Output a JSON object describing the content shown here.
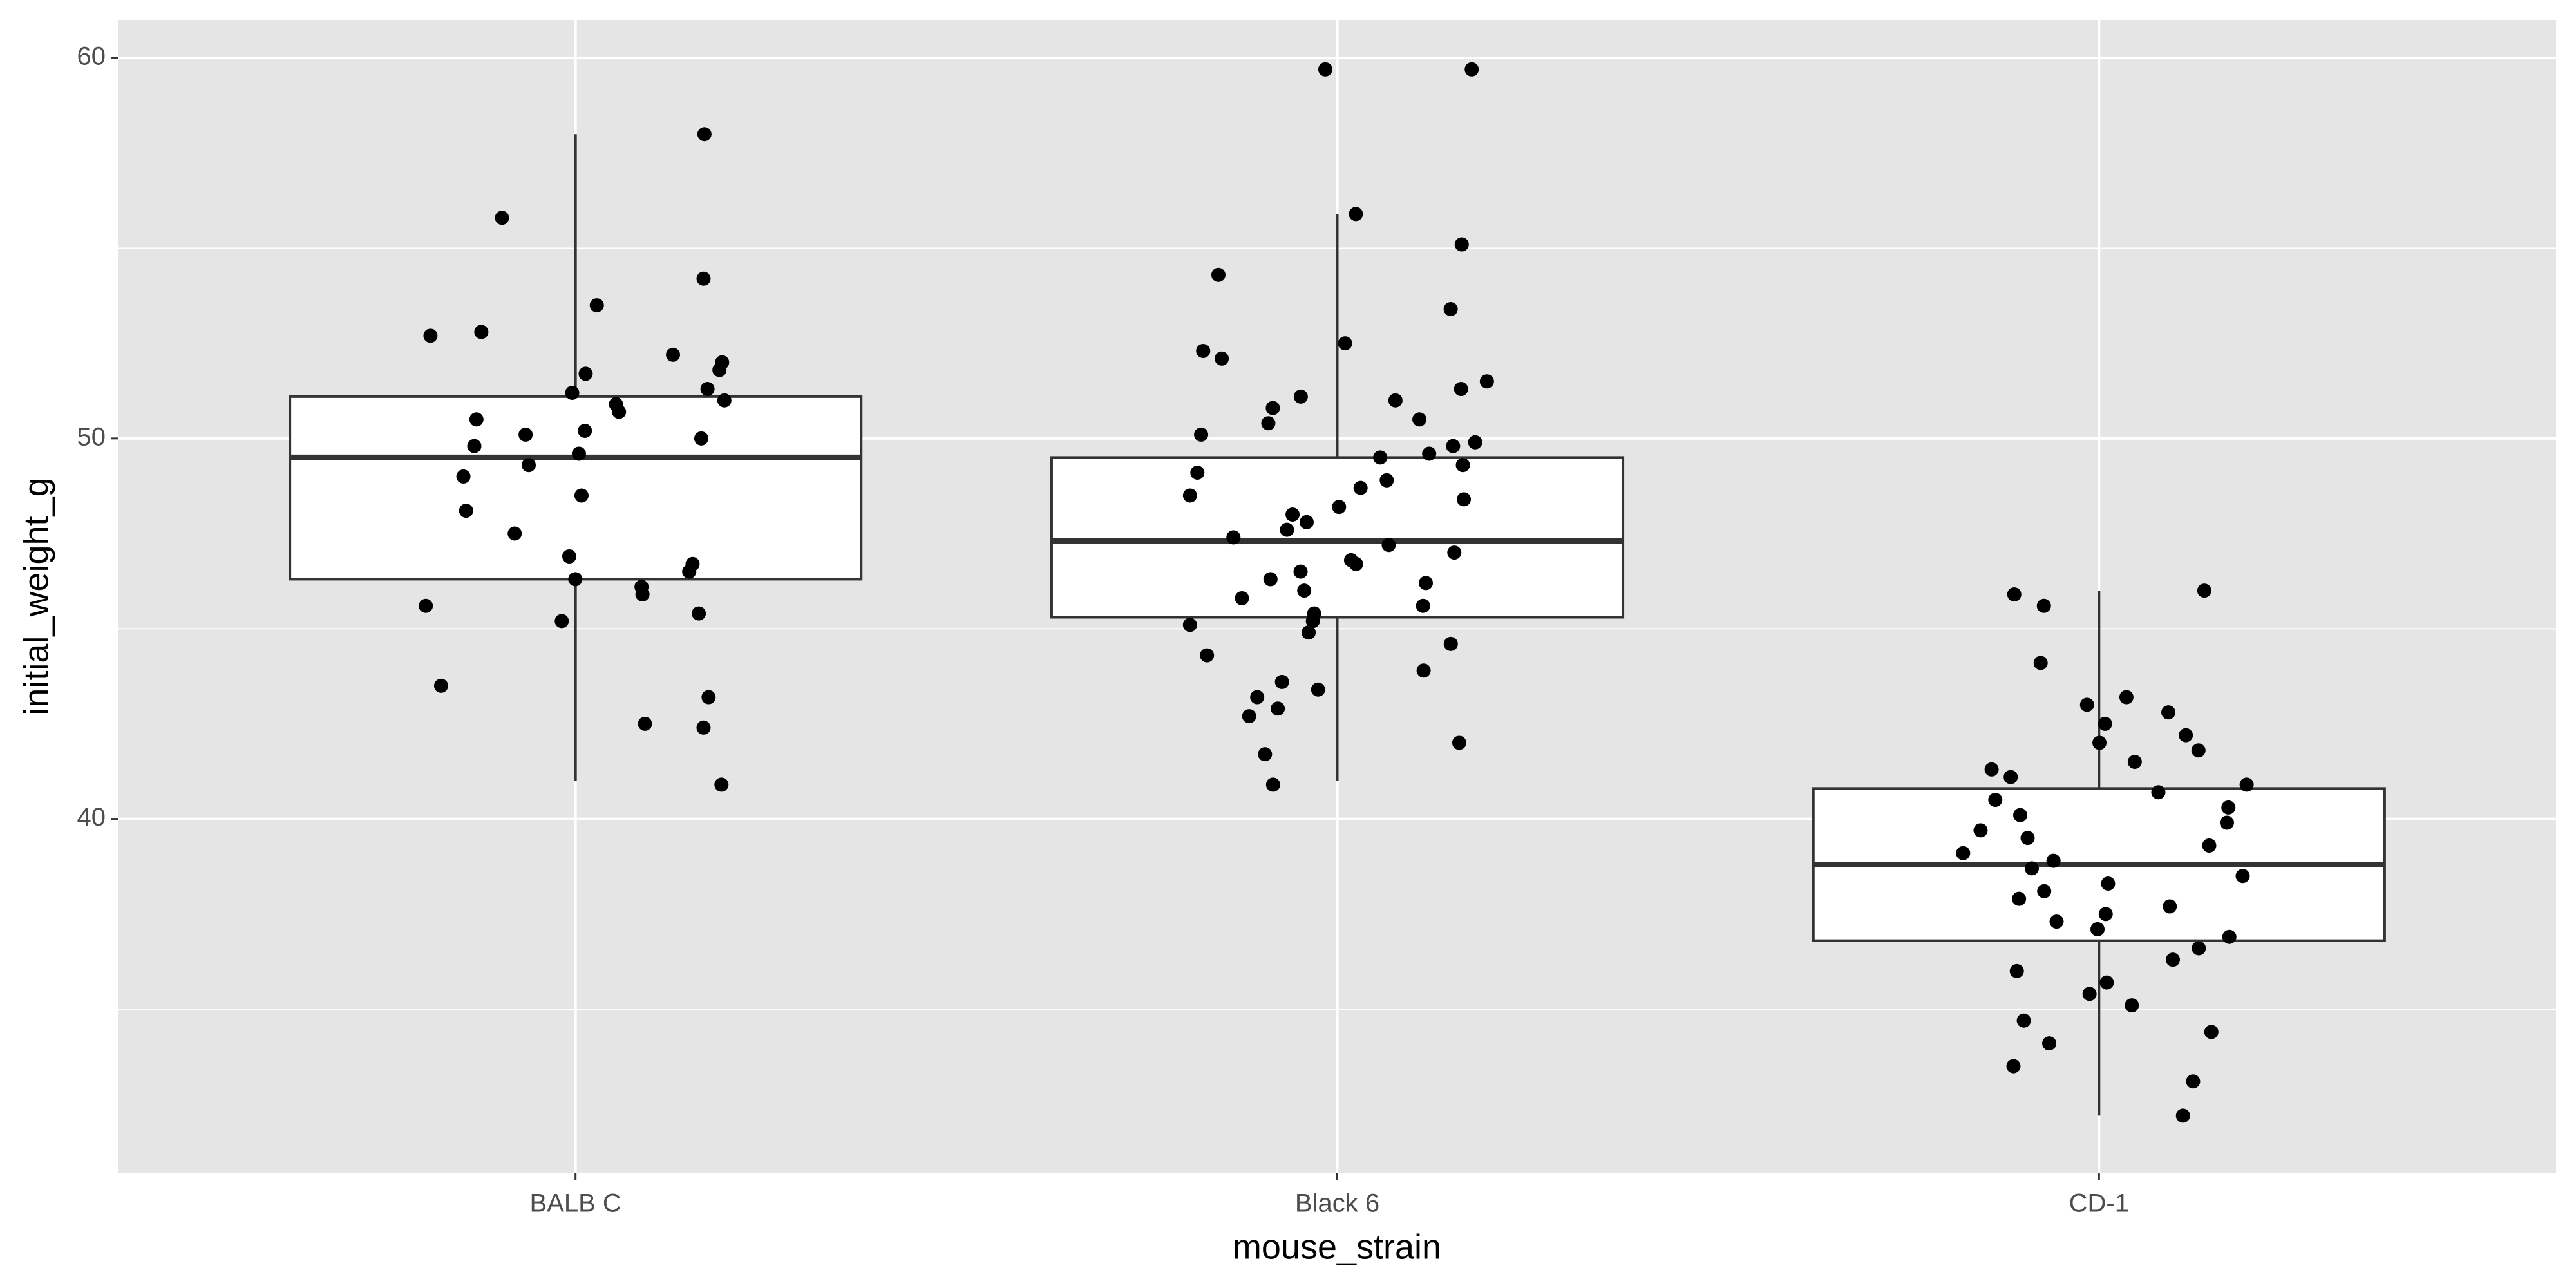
{
  "chart_data": {
    "type": "boxplot",
    "x_label": "mouse_strain",
    "y_label": "initial_weight_g",
    "categories": [
      "BALB C",
      "Black 6",
      "CD-1"
    ],
    "boxes": [
      {
        "low": 41.0,
        "q1": 46.3,
        "median": 49.5,
        "q3": 51.1,
        "high": 58.0
      },
      {
        "low": 41.0,
        "q1": 45.3,
        "median": 47.3,
        "q3": 49.5,
        "high": 55.9
      },
      {
        "low": 32.2,
        "q1": 36.8,
        "median": 38.8,
        "q3": 40.8,
        "high": 46.0
      }
    ],
    "points": [
      [
        58.0,
        55.8,
        54.2,
        53.5,
        52.8,
        52.7,
        52.2,
        52.0,
        51.8,
        51.7,
        51.3,
        51.2,
        51.0,
        50.9,
        50.7,
        50.5,
        50.2,
        50.1,
        50.0,
        49.8,
        49.6,
        49.3,
        49.0,
        48.5,
        48.1,
        47.5,
        46.9,
        46.7,
        46.5,
        46.3,
        46.1,
        45.9,
        45.6,
        45.4,
        45.2,
        43.5,
        43.2,
        42.5,
        42.4,
        40.9
      ],
      [
        59.7,
        59.7,
        55.9,
        55.1,
        54.3,
        53.4,
        52.5,
        52.3,
        52.1,
        51.5,
        51.3,
        51.1,
        51.0,
        50.8,
        50.5,
        50.4,
        50.1,
        49.9,
        49.8,
        49.6,
        49.5,
        49.3,
        49.1,
        48.9,
        48.7,
        48.5,
        48.4,
        48.2,
        48.0,
        47.8,
        47.6,
        47.4,
        47.2,
        47.0,
        46.8,
        46.7,
        46.5,
        46.3,
        46.2,
        46.0,
        45.8,
        45.6,
        45.4,
        45.2,
        45.1,
        44.9,
        44.6,
        44.3,
        43.9,
        43.6,
        43.4,
        43.2,
        42.9,
        42.7,
        42.0,
        41.7,
        40.9
      ],
      [
        46.0,
        45.9,
        45.6,
        44.1,
        43.2,
        43.0,
        42.8,
        42.5,
        42.2,
        42.0,
        41.8,
        41.5,
        41.3,
        41.1,
        40.9,
        40.7,
        40.5,
        40.3,
        40.1,
        39.9,
        39.7,
        39.5,
        39.3,
        39.1,
        38.9,
        38.7,
        38.5,
        38.3,
        38.1,
        37.9,
        37.7,
        37.5,
        37.3,
        37.1,
        36.9,
        36.6,
        36.3,
        36.0,
        35.7,
        35.4,
        35.1,
        34.7,
        34.4,
        34.1,
        33.5,
        33.1,
        32.2
      ]
    ],
    "point_color": "#000000",
    "box_fill": "#ffffff",
    "panel_color": "#e5e5e5",
    "ylim": [
      30.7,
      61.0
    ],
    "yticks": [
      40,
      50,
      60
    ],
    "yminor": [
      35,
      45,
      55
    ],
    "grid": true
  }
}
